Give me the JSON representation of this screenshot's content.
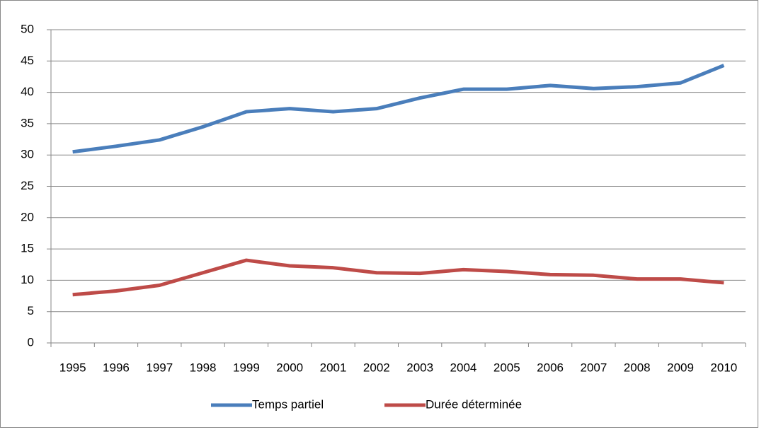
{
  "chart_data": {
    "type": "line",
    "categories": [
      "1995",
      "1996",
      "1997",
      "1998",
      "1999",
      "2000",
      "2001",
      "2002",
      "2003",
      "2004",
      "2005",
      "2006",
      "2007",
      "2008",
      "2009",
      "2010"
    ],
    "series": [
      {
        "name": "Temps partiel",
        "color": "#4a7ebb",
        "values": [
          30.5,
          31.4,
          32.4,
          34.5,
          36.9,
          37.4,
          36.9,
          37.4,
          39.1,
          40.5,
          40.5,
          41.1,
          40.6,
          40.9,
          41.5,
          44.3
        ]
      },
      {
        "name": "Durée déterminée",
        "color": "#be4b48",
        "values": [
          7.7,
          8.3,
          9.2,
          11.2,
          13.2,
          12.3,
          12.0,
          11.2,
          11.1,
          11.7,
          11.4,
          10.9,
          10.8,
          10.2,
          10.2,
          9.6
        ]
      }
    ],
    "ylim": [
      0,
      50
    ],
    "yticks": [
      0,
      5,
      10,
      15,
      20,
      25,
      30,
      35,
      40,
      45,
      50
    ],
    "grid": true,
    "legend": "bottom"
  }
}
